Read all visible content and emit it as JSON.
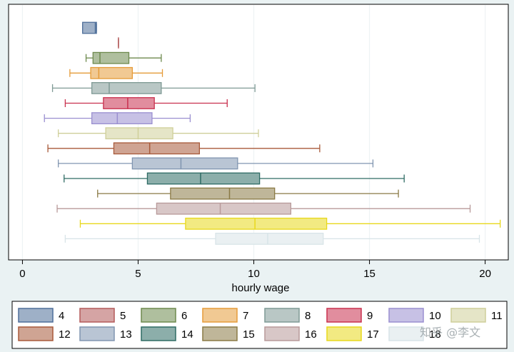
{
  "chart_data": {
    "type": "boxplot",
    "orientation": "horizontal",
    "xlabel": "hourly wage",
    "xlim": [
      -0.6,
      21.0
    ],
    "xticks": [
      0,
      5,
      10,
      15,
      20
    ],
    "grid": true,
    "legend_position": "bottom",
    "series": [
      {
        "name": "4",
        "color": "#4f6f9a",
        "min": 2.6,
        "q1": 2.6,
        "median": 3.15,
        "q3": 3.2,
        "max": 3.2
      },
      {
        "name": "5",
        "color": "#b35a5a",
        "min": 4.15,
        "q1": 4.15,
        "median": 4.15,
        "q3": 4.15,
        "max": 4.15
      },
      {
        "name": "6",
        "color": "#6e8a4e",
        "min": 2.75,
        "q1": 3.05,
        "median": 3.35,
        "q3": 4.6,
        "max": 6.0
      },
      {
        "name": "7",
        "color": "#e59c3a",
        "min": 2.05,
        "q1": 2.95,
        "median": 3.3,
        "q3": 4.75,
        "max": 6.05
      },
      {
        "name": "8",
        "color": "#7f9a95",
        "min": 1.3,
        "q1": 3.0,
        "median": 3.75,
        "q3": 6.0,
        "max": 10.05
      },
      {
        "name": "9",
        "color": "#c9304e",
        "min": 1.85,
        "q1": 3.5,
        "median": 4.55,
        "q3": 5.7,
        "max": 8.85
      },
      {
        "name": "10",
        "color": "#9a8fd0",
        "min": 0.95,
        "q1": 3.0,
        "median": 4.1,
        "q3": 5.6,
        "max": 7.25
      },
      {
        "name": "11",
        "color": "#cfcf9a",
        "min": 1.55,
        "q1": 3.6,
        "median": 5.0,
        "q3": 6.5,
        "max": 10.2
      },
      {
        "name": "12",
        "color": "#a85a3a",
        "min": 1.1,
        "q1": 3.95,
        "median": 5.5,
        "q3": 7.65,
        "max": 12.85
      },
      {
        "name": "13",
        "color": "#8095b0",
        "min": 1.55,
        "q1": 4.75,
        "median": 6.85,
        "q3": 9.3,
        "max": 15.15
      },
      {
        "name": "14",
        "color": "#2e6b64",
        "min": 1.8,
        "q1": 5.4,
        "median": 7.7,
        "q3": 10.25,
        "max": 16.5
      },
      {
        "name": "15",
        "color": "#8a7a45",
        "min": 3.25,
        "q1": 6.4,
        "median": 8.95,
        "q3": 10.9,
        "max": 16.25
      },
      {
        "name": "16",
        "color": "#b89a9a",
        "min": 1.5,
        "q1": 5.8,
        "median": 8.55,
        "q3": 11.6,
        "max": 19.35
      },
      {
        "name": "17",
        "color": "#e8d81c",
        "min": 2.5,
        "q1": 7.05,
        "median": 10.05,
        "q3": 13.15,
        "max": 20.65
      },
      {
        "name": "18",
        "color": "#d8e4e8",
        "min": 1.85,
        "q1": 8.35,
        "median": 10.6,
        "q3": 13.0,
        "max": 19.75
      }
    ]
  },
  "watermark": "知乎 @李文"
}
